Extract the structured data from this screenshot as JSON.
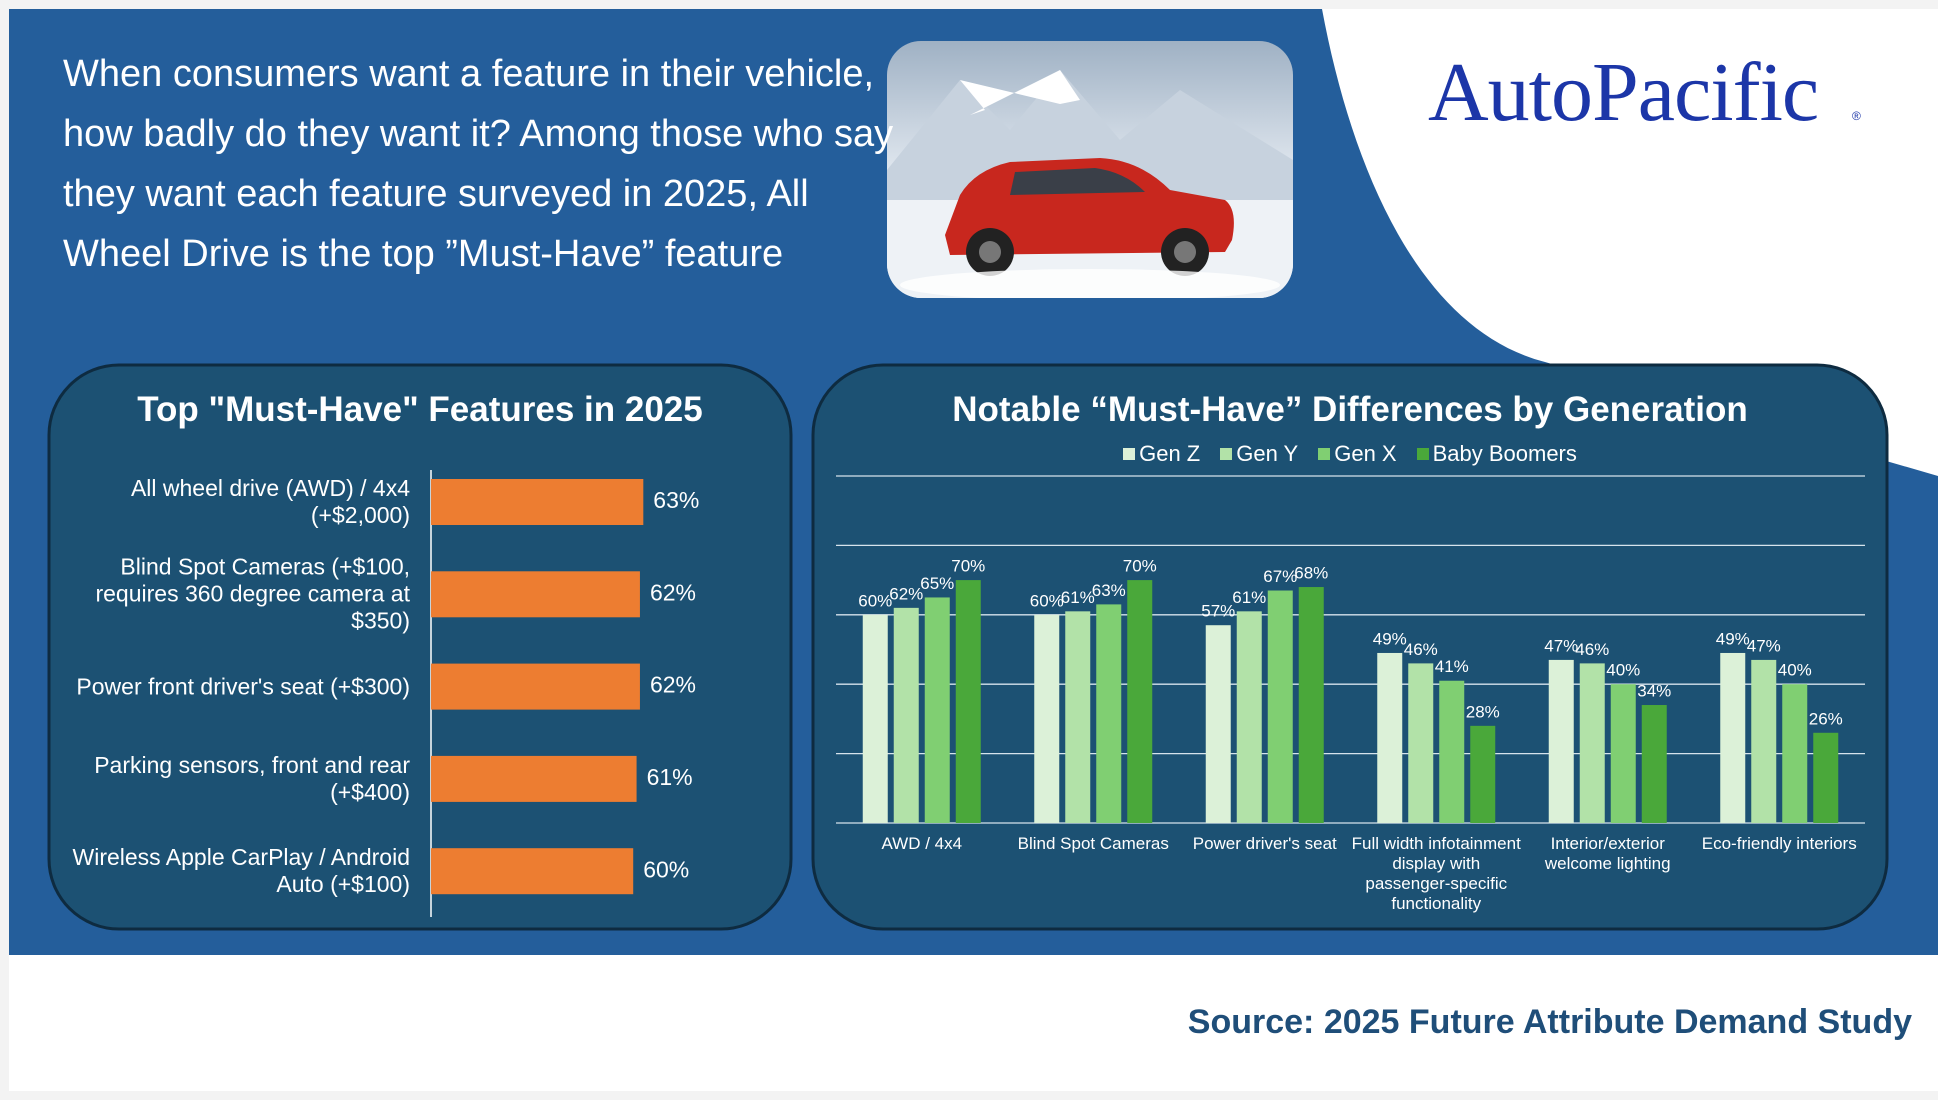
{
  "header": {
    "text": "When consumers want a feature in their vehicle, how badly do they want it? Among those who say they want each feature surveyed in 2025, All Wheel Drive is the top ”Must-Have” feature",
    "brand": "AutoPacific"
  },
  "chart_data": [
    {
      "type": "bar",
      "orientation": "horizontal",
      "title": "Top \"Must-Have\" Features in 2025",
      "categories": [
        "All wheel drive (AWD) / 4x4 (+$2,000)",
        "Blind Spot Cameras (+$100, requires 360 degree camera at $350)",
        "Power front driver's seat (+$300)",
        "Parking sensors, front and rear (+$400)",
        "Wireless Apple CarPlay / Android Auto (+$100)"
      ],
      "values": [
        63,
        62,
        62,
        61,
        60
      ],
      "value_labels": [
        "63%",
        "62%",
        "62%",
        "61%",
        "60%"
      ],
      "color": "#ed7d31",
      "xlim": [
        0,
        100
      ]
    },
    {
      "type": "bar",
      "title": "Notable “Must-Have” Differences by Generation",
      "categories": [
        "AWD / 4x4",
        "Blind Spot Cameras",
        "Power driver's seat",
        "Full width infotainment display with passenger-specific functionality",
        "Interior/exterior welcome lighting",
        "Eco-friendly interiors"
      ],
      "series": [
        {
          "name": "Gen Z",
          "color": "#dcf1d8",
          "values": [
            60,
            60,
            57,
            49,
            47,
            49
          ],
          "value_labels": [
            "60%",
            "60%",
            "57%",
            "49%",
            "47%",
            "49%"
          ]
        },
        {
          "name": "Gen Y",
          "color": "#b2e2a8",
          "values": [
            62,
            61,
            61,
            46,
            46,
            47
          ],
          "value_labels": [
            "62%",
            "61%",
            "61%",
            "46%",
            "46%",
            "47%"
          ]
        },
        {
          "name": "Gen X",
          "color": "#80cf72",
          "values": [
            65,
            63,
            67,
            41,
            40,
            40
          ],
          "value_labels": [
            "65%",
            "63%",
            "67%",
            "41%",
            "40%",
            "40%"
          ]
        },
        {
          "name": "Baby Boomers",
          "color": "#4aa83a",
          "values": [
            70,
            70,
            68,
            28,
            34,
            26
          ],
          "value_labels": [
            "70%",
            "70%",
            "68%",
            "28%",
            "34%",
            "26%"
          ]
        }
      ],
      "ylim": [
        0,
        100
      ],
      "yticks": [
        0,
        20,
        40,
        60,
        80,
        100
      ],
      "grid": true,
      "legend": "top"
    }
  ],
  "source": "Source: 2025 Future Attribute Demand Study"
}
